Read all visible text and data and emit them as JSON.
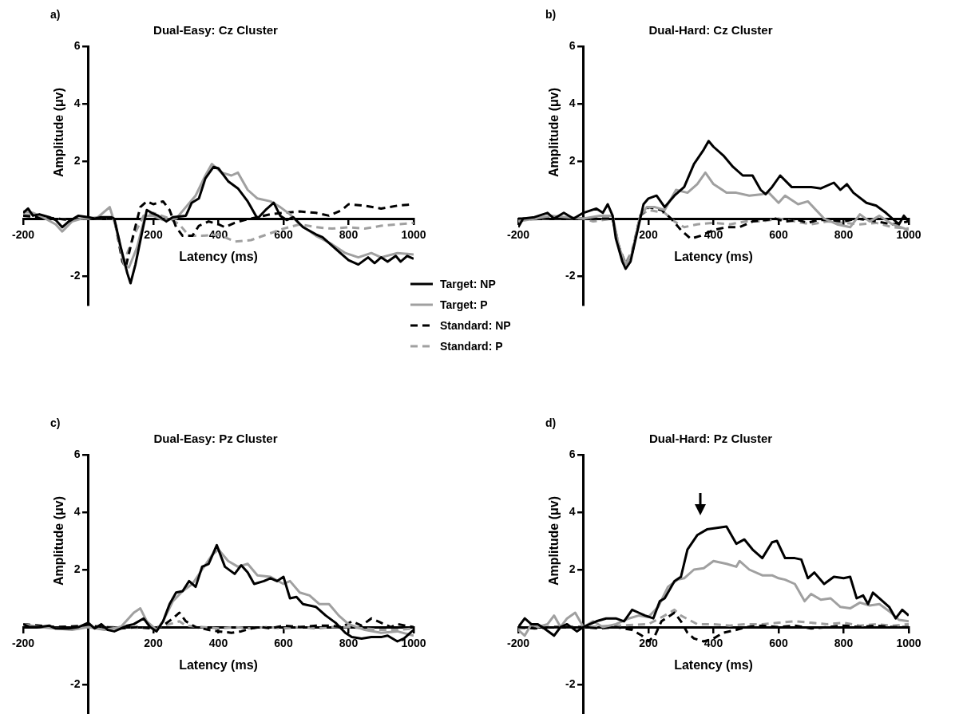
{
  "chart_data": [
    {
      "type": "line",
      "title": "Dual-Easy: Cz Cluster",
      "xlabel": "Latency (ms)",
      "ylabel": "Amplitude (μv)",
      "annotations": [
        "a)"
      ],
      "xlim": [
        -200,
        1000
      ],
      "ylim": [
        -3,
        6
      ],
      "xticks": [
        -200,
        200,
        400,
        600,
        800,
        1000
      ],
      "yticks": [
        -2,
        2,
        4,
        6
      ],
      "marker": "none",
      "legend": "bottom right",
      "series": [
        {
          "name": "Target: NP",
          "color": "#000000",
          "line_style": "solid",
          "x": [
            -200,
            -185,
            -170,
            -150,
            -120,
            -100,
            -80,
            -60,
            -30,
            0,
            20,
            40,
            70,
            80,
            100,
            120,
            130,
            145,
            165,
            180,
            195,
            215,
            240,
            260,
            300,
            318,
            340,
            360,
            385,
            400,
            430,
            460,
            490,
            520,
            545,
            570,
            590,
            610,
            630,
            660,
            700,
            720,
            760,
            800,
            830,
            860,
            880,
            900,
            920,
            945,
            960,
            980,
            1000
          ],
          "values": [
            0.2,
            0.35,
            0.1,
            0.15,
            0.05,
            -0.05,
            -0.3,
            -0.1,
            0.1,
            0.05,
            0,
            0.05,
            0.05,
            0,
            -1.0,
            -1.9,
            -2.25,
            -1.6,
            -0.5,
            0.3,
            0.2,
            0.1,
            -0.1,
            0.05,
            0.1,
            0.55,
            0.7,
            1.4,
            1.8,
            1.75,
            1.3,
            1.05,
            0.6,
            0.0,
            0.3,
            0.55,
            0.1,
            -0.05,
            0.05,
            -0.3,
            -0.55,
            -0.65,
            -1.05,
            -1.45,
            -1.6,
            -1.35,
            -1.55,
            -1.35,
            -1.5,
            -1.3,
            -1.5,
            -1.3,
            -1.4
          ]
        },
        {
          "name": "Target: P",
          "color": "#a0a0a0",
          "line_style": "solid",
          "x": [
            -200,
            -170,
            -140,
            -100,
            -80,
            -50,
            -20,
            0,
            30,
            66,
            85,
            110,
            125,
            150,
            175,
            200,
            230,
            270,
            300,
            330,
            360,
            380,
            410,
            440,
            460,
            490,
            520,
            560,
            590,
            620,
            650,
            700,
            750,
            790,
            830,
            870,
            900,
            950,
            1000
          ],
          "values": [
            0.25,
            0.2,
            0.05,
            -0.2,
            -0.45,
            -0.1,
            0.0,
            0,
            0.05,
            0.4,
            -0.3,
            -1.6,
            -1.7,
            -1.0,
            0.1,
            0.1,
            -0.05,
            0.0,
            0.4,
            0.8,
            1.5,
            1.9,
            1.6,
            1.5,
            1.6,
            1.0,
            0.7,
            0.6,
            0.4,
            0.15,
            -0.2,
            -0.6,
            -0.9,
            -1.2,
            -1.35,
            -1.2,
            -1.35,
            -1.2,
            -1.25
          ]
        },
        {
          "name": "Standard: NP",
          "color": "#000000",
          "line_style": "dashed",
          "x": [
            -200,
            -150,
            -100,
            -50,
            0,
            80,
            105,
            115,
            140,
            160,
            180,
            200,
            230,
            250,
            270,
            290,
            320,
            340,
            370,
            400,
            420,
            450,
            480,
            520,
            560,
            600,
            650,
            700,
            740,
            780,
            800,
            850,
            900,
            950,
            1000
          ],
          "values": [
            0.1,
            0.05,
            0.0,
            -0.05,
            0,
            0,
            -1.5,
            -1.7,
            -0.5,
            0.4,
            0.6,
            0.5,
            0.6,
            0.3,
            -0.3,
            -0.6,
            -0.6,
            -0.25,
            -0.1,
            -0.2,
            -0.3,
            -0.15,
            -0.05,
            0.05,
            0.15,
            0.2,
            0.25,
            0.2,
            0.1,
            0.3,
            0.5,
            0.45,
            0.35,
            0.45,
            0.5
          ]
        },
        {
          "name": "Standard: P",
          "color": "#a0a0a0",
          "line_style": "dashed",
          "x": [
            -200,
            -150,
            -100,
            -50,
            0,
            80,
            110,
            140,
            170,
            200,
            250,
            280,
            310,
            350,
            400,
            450,
            500,
            550,
            600,
            650,
            700,
            750,
            800,
            850,
            900,
            1000
          ],
          "values": [
            0.15,
            0.1,
            0.0,
            -0.05,
            0,
            0,
            -1.5,
            -0.6,
            0.1,
            0.2,
            0.0,
            -0.2,
            -0.6,
            -0.6,
            -0.55,
            -0.8,
            -0.75,
            -0.55,
            -0.35,
            -0.2,
            -0.3,
            -0.35,
            -0.3,
            -0.35,
            -0.25,
            -0.15
          ]
        }
      ]
    },
    {
      "type": "line",
      "title": "Dual-Hard: Cz Cluster",
      "xlabel": "Latency (ms)",
      "ylabel": "Amplitude (μv)",
      "annotations": [
        "b)"
      ],
      "xlim": [
        -200,
        1000
      ],
      "ylim": [
        -3,
        6
      ],
      "xticks": [
        -200,
        200,
        400,
        600,
        800,
        1000
      ],
      "yticks": [
        -2,
        2,
        4,
        6
      ],
      "marker": "none",
      "series": [
        {
          "color": "#000000",
          "line_style": "solid",
          "x": [
            -200,
            -185,
            -150,
            -110,
            -90,
            -60,
            -30,
            0,
            40,
            60,
            75,
            90,
            100,
            120,
            130,
            145,
            165,
            185,
            200,
            225,
            250,
            280,
            310,
            340,
            370,
            385,
            400,
            430,
            460,
            490,
            520,
            545,
            560,
            580,
            605,
            640,
            660,
            700,
            730,
            770,
            790,
            810,
            830,
            870,
            900,
            930,
            950,
            970,
            985,
            1000
          ],
          "values": [
            -0.3,
            0.0,
            0.05,
            0.2,
            0.0,
            0.2,
            0.0,
            0.2,
            0.35,
            0.2,
            0.5,
            0.1,
            -0.7,
            -1.5,
            -1.75,
            -1.5,
            -0.5,
            0.5,
            0.7,
            0.8,
            0.4,
            0.8,
            1.1,
            1.9,
            2.4,
            2.7,
            2.5,
            2.2,
            1.8,
            1.5,
            1.5,
            1.0,
            0.85,
            1.1,
            1.5,
            1.1,
            1.1,
            1.1,
            1.05,
            1.25,
            1.0,
            1.2,
            0.9,
            0.55,
            0.45,
            0.2,
            0.0,
            -0.2,
            0.1,
            -0.1
          ]
        },
        {
          "color": "#a0a0a0",
          "line_style": "solid",
          "x": [
            -200,
            -150,
            -100,
            -50,
            0,
            50,
            90,
            110,
            130,
            150,
            175,
            195,
            220,
            250,
            285,
            320,
            350,
            375,
            400,
            440,
            470,
            510,
            550,
            570,
            600,
            620,
            660,
            690,
            740,
            780,
            820,
            850,
            880,
            910,
            950,
            1000
          ],
          "values": [
            -0.1,
            0.0,
            0.1,
            0.05,
            0.0,
            0.1,
            0.1,
            -1.0,
            -1.6,
            -1.2,
            0.1,
            0.4,
            0.4,
            0.3,
            1.0,
            0.9,
            1.2,
            1.6,
            1.2,
            0.9,
            0.9,
            0.8,
            0.85,
            0.9,
            0.55,
            0.8,
            0.5,
            0.6,
            0.0,
            -0.2,
            -0.3,
            0.15,
            -0.1,
            0.1,
            -0.2,
            -0.4
          ]
        },
        {
          "color": "#000000",
          "line_style": "dashed",
          "x": [
            -200,
            -100,
            0,
            90,
            110,
            130,
            150,
            175,
            200,
            240,
            270,
            300,
            330,
            360,
            400,
            440,
            480,
            520,
            560,
            590,
            620,
            660,
            690,
            720,
            760,
            800,
            840,
            900,
            950,
            1000
          ],
          "values": [
            0.0,
            0.0,
            0.0,
            0.0,
            -1.0,
            -1.6,
            -1.2,
            0.1,
            0.4,
            0.3,
            0.0,
            -0.4,
            -0.7,
            -0.6,
            -0.4,
            -0.3,
            -0.3,
            -0.1,
            -0.05,
            0.0,
            -0.1,
            -0.05,
            -0.15,
            -0.05,
            -0.05,
            -0.1,
            0.0,
            -0.1,
            -0.2,
            -0.1
          ]
        },
        {
          "color": "#a0a0a0",
          "line_style": "dashed",
          "x": [
            -200,
            -100,
            0,
            30,
            60,
            90,
            110,
            130,
            150,
            175,
            200,
            250,
            280,
            310,
            350,
            400,
            450,
            500,
            550,
            600,
            650,
            700,
            750,
            800,
            850,
            900,
            950,
            1000
          ],
          "values": [
            -0.05,
            0.0,
            0.0,
            -0.1,
            -0.05,
            0.0,
            -1.0,
            -1.55,
            -1.1,
            0.1,
            0.3,
            0.2,
            -0.1,
            -0.3,
            -0.2,
            -0.15,
            -0.2,
            -0.1,
            -0.1,
            0.0,
            -0.1,
            -0.2,
            -0.1,
            -0.15,
            -0.2,
            -0.15,
            -0.3,
            -0.35
          ]
        }
      ]
    },
    {
      "type": "line",
      "title": "Dual-Easy: Pz Cluster",
      "xlabel": "Latency (ms)",
      "ylabel": "Amplitude (μv)",
      "annotations": [
        "c)"
      ],
      "xlim": [
        -200,
        1000
      ],
      "ylim": [
        -3,
        6
      ],
      "xticks": [
        -200,
        200,
        400,
        600,
        800,
        1000
      ],
      "yticks": [
        -2,
        2,
        4,
        6
      ],
      "marker": "none",
      "series": [
        {
          "color": "#000000",
          "line_style": "solid",
          "x": [
            -200,
            -180,
            -150,
            -120,
            -100,
            -60,
            -30,
            0,
            20,
            40,
            60,
            80,
            100,
            120,
            140,
            170,
            190,
            210,
            230,
            250,
            270,
            290,
            310,
            330,
            350,
            370,
            395,
            420,
            450,
            470,
            490,
            510,
            540,
            560,
            580,
            600,
            620,
            640,
            660,
            700,
            730,
            760,
            790,
            810,
            840,
            870,
            900,
            920,
            950,
            970,
            990,
            1000
          ],
          "values": [
            0.1,
            0.0,
            0.0,
            0.05,
            -0.05,
            -0.05,
            0.0,
            0.15,
            -0.05,
            0.1,
            -0.1,
            -0.15,
            -0.05,
            0.05,
            0.1,
            0.3,
            0.0,
            -0.15,
            0.2,
            0.8,
            1.2,
            1.25,
            1.6,
            1.4,
            2.1,
            2.2,
            2.85,
            2.1,
            1.85,
            2.15,
            1.9,
            1.5,
            1.6,
            1.7,
            1.6,
            1.75,
            1.0,
            1.05,
            0.8,
            0.7,
            0.4,
            0.15,
            -0.2,
            -0.35,
            -0.4,
            -0.35,
            -0.35,
            -0.3,
            -0.5,
            -0.4,
            -0.2,
            -0.1
          ]
        },
        {
          "color": "#a0a0a0",
          "line_style": "solid",
          "x": [
            -200,
            -150,
            -100,
            -50,
            0,
            50,
            100,
            140,
            160,
            180,
            210,
            230,
            260,
            290,
            320,
            350,
            380,
            400,
            430,
            460,
            490,
            520,
            560,
            600,
            620,
            650,
            680,
            710,
            740,
            770,
            800,
            850,
            900,
            950,
            1000
          ],
          "values": [
            0.1,
            0.0,
            -0.05,
            -0.1,
            0.0,
            -0.1,
            0.0,
            0.5,
            0.65,
            0.2,
            -0.1,
            0.2,
            0.9,
            1.25,
            1.5,
            2.0,
            2.5,
            2.7,
            2.3,
            2.1,
            2.2,
            1.8,
            1.75,
            1.5,
            1.6,
            1.2,
            1.1,
            0.8,
            0.8,
            0.4,
            0.1,
            -0.1,
            -0.2,
            -0.15,
            -0.3
          ]
        },
        {
          "color": "#000000",
          "line_style": "dashed",
          "x": [
            -200,
            -100,
            0,
            100,
            150,
            200,
            230,
            260,
            280,
            300,
            330,
            370,
            400,
            440,
            470,
            500,
            530,
            560,
            600,
            650,
            700,
            740,
            780,
            810,
            840,
            870,
            900,
            930,
            950,
            1000
          ],
          "values": [
            0.1,
            0.0,
            0.05,
            -0.05,
            0.0,
            -0.05,
            0.05,
            0.3,
            0.5,
            0.2,
            0.0,
            -0.1,
            -0.15,
            -0.2,
            -0.15,
            -0.05,
            0.0,
            -0.05,
            0.05,
            0.0,
            0.05,
            0.05,
            0.0,
            0.2,
            0.05,
            0.3,
            0.15,
            0.0,
            0.1,
            0.0
          ]
        },
        {
          "color": "#a0a0a0",
          "line_style": "dashed",
          "x": [
            -200,
            -100,
            0,
            100,
            200,
            250,
            280,
            300,
            350,
            400,
            450,
            500,
            550,
            600,
            650,
            700,
            750,
            800,
            850,
            900,
            950,
            1000
          ],
          "values": [
            0.1,
            -0.05,
            0.0,
            0.0,
            -0.05,
            0.1,
            0.2,
            0.05,
            0.0,
            -0.05,
            0.0,
            -0.05,
            0.0,
            -0.05,
            0.0,
            -0.05,
            0.0,
            0.0,
            -0.05,
            -0.1,
            -0.1,
            -0.05
          ]
        }
      ]
    },
    {
      "type": "line",
      "title": "Dual-Hard: Pz Cluster",
      "xlabel": "Latency (ms)",
      "ylabel": "Amplitude (μv)",
      "annotations": [
        "d)"
      ],
      "xlim": [
        -200,
        1000
      ],
      "ylim": [
        -3,
        6
      ],
      "xticks": [
        -200,
        200,
        400,
        600,
        800,
        1000
      ],
      "yticks": [
        -2,
        2,
        4,
        6
      ],
      "marker": "none",
      "series": [
        {
          "color": "#000000",
          "line_style": "solid",
          "x": [
            -200,
            -180,
            -160,
            -140,
            -120,
            -90,
            -70,
            -50,
            -20,
            0,
            20,
            40,
            70,
            100,
            125,
            150,
            170,
            190,
            215,
            235,
            250,
            280,
            300,
            320,
            350,
            380,
            410,
            440,
            470,
            495,
            520,
            550,
            580,
            595,
            620,
            650,
            670,
            690,
            710,
            740,
            770,
            800,
            820,
            840,
            860,
            875,
            890,
            920,
            940,
            960,
            980,
            1000
          ],
          "values": [
            0.0,
            0.3,
            0.1,
            0.1,
            -0.05,
            -0.3,
            0.0,
            0.1,
            -0.15,
            0.0,
            0.1,
            0.2,
            0.3,
            0.3,
            0.2,
            0.6,
            0.5,
            0.4,
            0.3,
            0.9,
            1.0,
            1.6,
            1.75,
            2.7,
            3.2,
            3.4,
            3.45,
            3.5,
            2.9,
            3.05,
            2.7,
            2.4,
            2.95,
            3.0,
            2.4,
            2.4,
            2.35,
            1.7,
            1.9,
            1.5,
            1.75,
            1.7,
            1.75,
            1.0,
            1.1,
            0.8,
            1.2,
            0.9,
            0.7,
            0.3,
            0.6,
            0.4
          ]
        },
        {
          "color": "#a0a0a0",
          "line_style": "solid",
          "x": [
            -200,
            -180,
            -160,
            -140,
            -110,
            -90,
            -70,
            -50,
            -25,
            0,
            30,
            60,
            100,
            140,
            170,
            200,
            230,
            260,
            290,
            310,
            340,
            370,
            400,
            440,
            470,
            480,
            510,
            550,
            580,
            600,
            620,
            650,
            680,
            700,
            730,
            760,
            790,
            820,
            850,
            880,
            910,
            940,
            970,
            1000
          ],
          "values": [
            -0.1,
            -0.3,
            0.1,
            0.0,
            0.1,
            0.4,
            0.0,
            0.3,
            0.5,
            0.0,
            0.2,
            0.0,
            0.1,
            0.3,
            0.4,
            0.35,
            0.7,
            1.4,
            1.65,
            1.7,
            2.0,
            2.05,
            2.3,
            2.2,
            2.1,
            2.3,
            2.0,
            1.8,
            1.8,
            1.7,
            1.65,
            1.5,
            0.9,
            1.15,
            0.95,
            1.0,
            0.7,
            0.65,
            0.85,
            0.75,
            0.8,
            0.55,
            0.25,
            0.2
          ]
        },
        {
          "color": "#000000",
          "line_style": "dashed",
          "x": [
            -200,
            -150,
            -100,
            0,
            50,
            100,
            150,
            180,
            200,
            220,
            240,
            260,
            280,
            300,
            320,
            340,
            370,
            400,
            430,
            470,
            500,
            550,
            600,
            650,
            700,
            750,
            800,
            850,
            900,
            950,
            1000
          ],
          "values": [
            0.0,
            -0.05,
            0.0,
            0.0,
            -0.05,
            0.0,
            -0.1,
            -0.3,
            -0.5,
            -0.3,
            0.2,
            0.35,
            0.5,
            0.2,
            -0.2,
            -0.4,
            -0.5,
            -0.4,
            -0.2,
            -0.1,
            0.0,
            0.05,
            0.0,
            0.05,
            -0.05,
            0.0,
            0.05,
            0.0,
            0.05,
            0.0,
            0.0
          ]
        },
        {
          "color": "#a0a0a0",
          "line_style": "dashed",
          "x": [
            -200,
            -100,
            0,
            100,
            200,
            250,
            280,
            300,
            350,
            400,
            450,
            500,
            550,
            600,
            650,
            700,
            750,
            800,
            850,
            900,
            950,
            1000
          ],
          "values": [
            -0.05,
            0.0,
            0.0,
            0.05,
            0.1,
            0.4,
            0.6,
            0.4,
            0.1,
            0.1,
            0.05,
            0.1,
            0.1,
            0.15,
            0.2,
            0.15,
            0.1,
            0.15,
            0.05,
            0.1,
            0.05,
            0.1
          ]
        }
      ]
    }
  ]
}
